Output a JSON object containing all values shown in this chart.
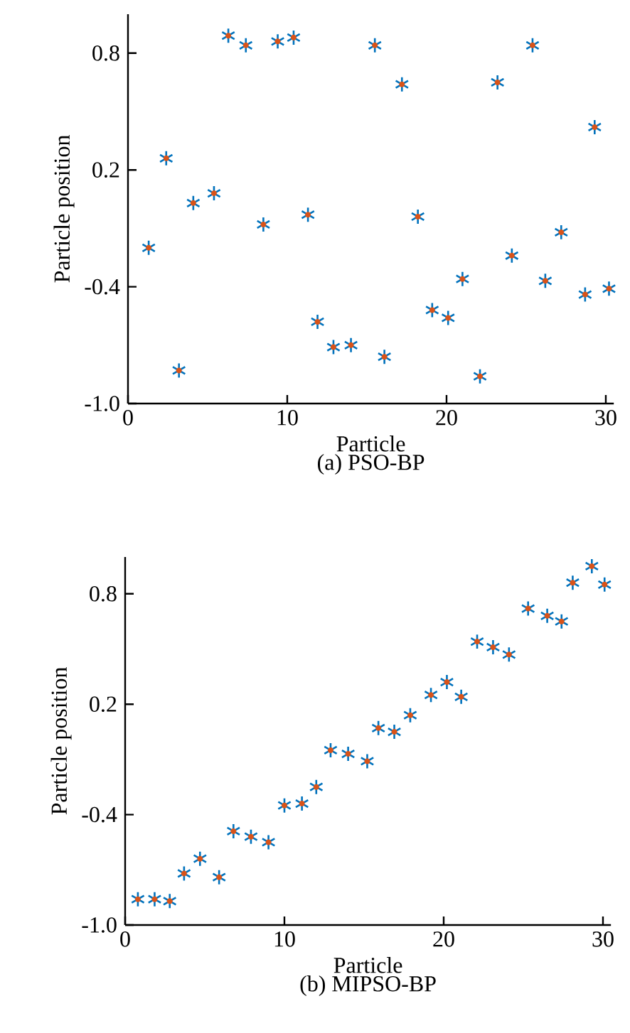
{
  "chart_data": [
    {
      "type": "scatter",
      "title": "(a) PSO-BP",
      "xlabel": "Particle",
      "ylabel": "Particle position",
      "marker": "cross",
      "xlim": [
        0,
        30.5
      ],
      "ylim": [
        -1,
        1
      ],
      "xticks": [
        0,
        10,
        20,
        30
      ],
      "yticks": [
        {
          "value": -1,
          "label": "-1.0"
        },
        -0.4,
        0.2,
        0.8
      ],
      "series": [
        {
          "color": "#0072bd",
          "x": [
            1.3,
            2.4,
            3.2,
            4.1,
            5.4,
            6.3,
            7.4,
            8.5,
            9.4,
            10.4,
            11.3,
            11.9,
            12.9,
            14.0,
            15.5,
            16.1,
            17.2,
            18.2,
            19.1,
            20.1,
            21.0,
            22.1,
            23.2,
            24.1,
            25.4,
            26.2,
            27.2,
            28.7,
            29.3,
            30.2
          ],
          "values": [
            -0.2,
            0.26,
            -0.83,
            0.03,
            0.08,
            0.89,
            0.84,
            -0.08,
            0.86,
            0.88,
            -0.03,
            -0.58,
            -0.71,
            -0.7,
            0.84,
            -0.76,
            0.64,
            -0.04,
            -0.52,
            -0.56,
            -0.36,
            -0.86,
            0.65,
            -0.24,
            0.84,
            -0.37,
            -0.12,
            -0.44,
            0.42,
            -0.41
          ]
        }
      ]
    },
    {
      "type": "scatter",
      "title": "(b) MIPSO-BP",
      "xlabel": "Particle",
      "ylabel": "Particle position",
      "marker": "cross",
      "xlim": [
        0,
        30.5
      ],
      "ylim": [
        -1,
        1
      ],
      "xticks": [
        0,
        10,
        20,
        30
      ],
      "yticks": [
        {
          "value": -1,
          "label": "-1.0"
        },
        -0.4,
        0.2,
        0.8
      ],
      "series": [
        {
          "color": "#0072bd",
          "x": [
            0.8,
            1.85,
            2.8,
            3.7,
            4.7,
            5.9,
            6.8,
            7.9,
            9.0,
            10.0,
            11.1,
            12.0,
            12.9,
            14.0,
            15.2,
            15.9,
            16.9,
            17.9,
            19.2,
            20.2,
            21.1,
            22.1,
            23.1,
            24.1,
            25.3,
            26.5,
            27.4,
            28.1,
            29.3,
            30.1
          ],
          "values": [
            -0.86,
            -0.86,
            -0.87,
            -0.72,
            -0.64,
            -0.74,
            -0.49,
            -0.52,
            -0.55,
            -0.35,
            -0.34,
            -0.25,
            -0.05,
            -0.07,
            -0.11,
            0.07,
            0.05,
            0.14,
            0.25,
            0.32,
            0.24,
            0.54,
            0.51,
            0.47,
            0.72,
            0.68,
            0.65,
            0.86,
            0.95,
            0.85
          ]
        }
      ]
    }
  ]
}
